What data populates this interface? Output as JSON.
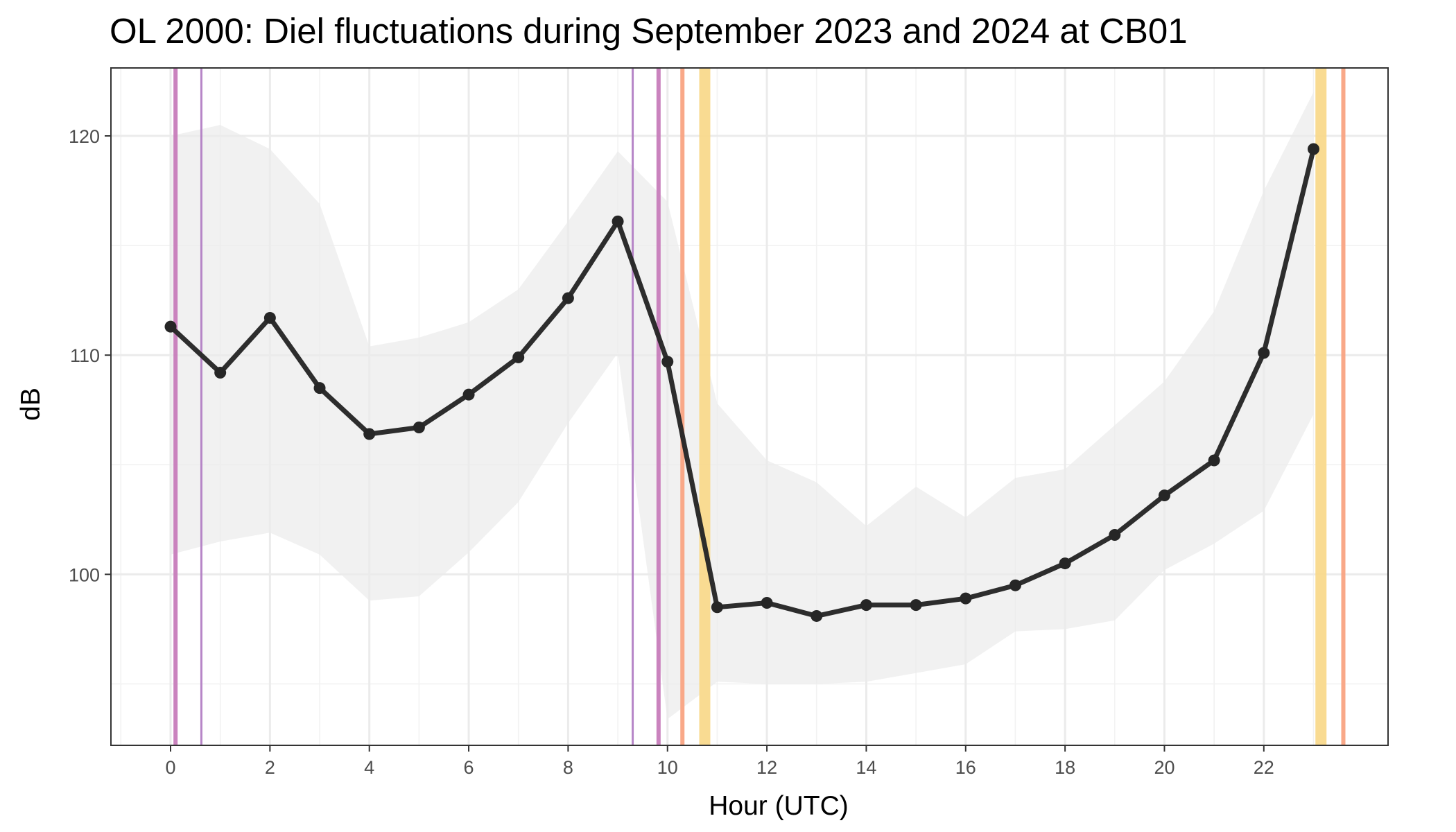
{
  "chart_data": {
    "type": "line",
    "title": "OL 2000: Diel fluctuations during September 2023 and 2024 at CB01",
    "xlabel": "Hour (UTC)",
    "ylabel": "dB",
    "xlim": [
      -1.2,
      24.5
    ],
    "ylim": [
      92.2,
      123.1
    ],
    "x_ticks": [
      0,
      2,
      4,
      6,
      8,
      10,
      12,
      14,
      16,
      18,
      20,
      22
    ],
    "y_ticks": [
      100,
      110,
      120
    ],
    "grid": true,
    "legend": "none",
    "series": [
      {
        "x": [
          0,
          1,
          2,
          3,
          4,
          5,
          6,
          7,
          8,
          9,
          10,
          11,
          12,
          13,
          14,
          15,
          16,
          17,
          18,
          19,
          20,
          21,
          22,
          23
        ],
        "values": [
          111.3,
          109.2,
          111.7,
          108.5,
          106.4,
          106.7,
          108.2,
          109.9,
          112.6,
          116.1,
          109.7,
          98.5,
          98.7,
          98.1,
          98.6,
          98.6,
          98.9,
          99.5,
          100.5,
          101.8,
          103.6,
          105.2,
          110.1,
          119.4
        ],
        "ribbon_upper": [
          120.0,
          120.5,
          119.4,
          116.9,
          110.4,
          110.8,
          111.5,
          113.0,
          116.1,
          119.3,
          117.0,
          107.8,
          105.2,
          104.2,
          102.2,
          104.0,
          102.6,
          104.4,
          104.8,
          106.8,
          108.8,
          112.0,
          117.5,
          122.0
        ],
        "ribbon_lower": [
          100.9,
          101.5,
          101.9,
          100.9,
          98.8,
          99.0,
          101.0,
          103.3,
          106.9,
          110.1,
          93.4,
          95.1,
          95.0,
          95.0,
          95.1,
          95.5,
          95.9,
          97.4,
          97.5,
          97.9,
          100.2,
          101.4,
          102.9,
          107.3
        ],
        "color": "#262626"
      }
    ],
    "vertical_markers": [
      {
        "x": 0.1,
        "color": "#c77cba",
        "weight": "thick"
      },
      {
        "x": 0.62,
        "color": "#b27ec4",
        "weight": "thin"
      },
      {
        "x": 9.3,
        "color": "#b27ec4",
        "weight": "thin"
      },
      {
        "x": 9.82,
        "color": "#c77cba",
        "weight": "thick"
      },
      {
        "x": 10.3,
        "color": "#f9a382",
        "weight": "thick"
      },
      {
        "x": 10.75,
        "color": "#f9d98c",
        "weight": "wide"
      },
      {
        "x": 23.15,
        "color": "#f9d98c",
        "weight": "wide"
      },
      {
        "x": 23.6,
        "color": "#f9a382",
        "weight": "thick"
      }
    ],
    "ribbon_color": "#ebebeb",
    "panel_border_color": "#333333",
    "grid_major_color": "#ebebeb"
  }
}
